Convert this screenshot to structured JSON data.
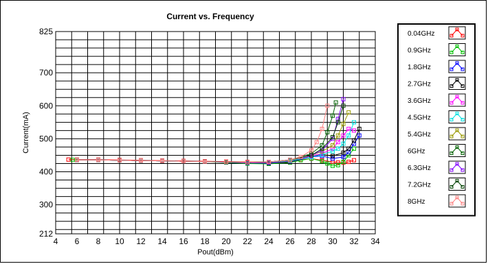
{
  "chart_data": {
    "type": "line",
    "title": "Current vs. Frequency",
    "xlabel": "Pout(dBm)",
    "ylabel": "Current(mA)",
    "xlim": [
      4,
      34
    ],
    "ylim": [
      212,
      825
    ],
    "x_ticks": [
      4,
      6,
      8,
      10,
      12,
      14,
      16,
      18,
      20,
      22,
      24,
      26,
      28,
      30,
      32,
      34
    ],
    "y_ticks": [
      212,
      300,
      400,
      500,
      600,
      700,
      825
    ],
    "grid": true,
    "legend_position": "right",
    "series": [
      {
        "name": "0.04GHz",
        "color": "#ff0000",
        "x": [
          5.2,
          6,
          8,
          10,
          12,
          14,
          16,
          18,
          20,
          22,
          24,
          26,
          27,
          28,
          29,
          30,
          30.5,
          31,
          31.5,
          32
        ],
        "y": [
          437,
          437,
          437,
          436,
          435,
          434,
          433,
          432,
          431,
          430,
          430,
          432,
          436,
          440,
          435,
          430,
          428,
          428,
          430,
          435
        ]
      },
      {
        "name": "0.9GHz",
        "color": "#00c000",
        "x": [
          5.6,
          6,
          8,
          10,
          12,
          14,
          16,
          18,
          20,
          22,
          24,
          26,
          27,
          28,
          29,
          29.5,
          30,
          30.5,
          31,
          31.5,
          32
        ],
        "y": [
          436,
          436,
          436,
          435,
          434,
          433,
          432,
          431,
          428,
          425,
          424,
          428,
          435,
          440,
          432,
          425,
          418,
          420,
          430,
          450,
          470
        ]
      },
      {
        "name": "1.8GHz",
        "color": "#0000ff",
        "x": [
          6,
          8,
          10,
          12,
          14,
          16,
          18,
          20,
          22,
          24,
          26,
          28,
          29,
          30,
          31,
          31.5,
          32,
          32.5
        ],
        "y": [
          436,
          436,
          435,
          434,
          433,
          432,
          431,
          429,
          427,
          426,
          430,
          445,
          448,
          440,
          445,
          460,
          485,
          510
        ]
      },
      {
        "name": "2.7GHz",
        "color": "#000000",
        "x": [
          6,
          8,
          10,
          12,
          14,
          16,
          18,
          20,
          22,
          24,
          26,
          28,
          29,
          30,
          31,
          31.5,
          32,
          32.5
        ],
        "y": [
          436,
          436,
          435,
          434,
          433,
          432,
          431,
          430,
          428,
          427,
          430,
          448,
          452,
          448,
          458,
          470,
          495,
          530
        ]
      },
      {
        "name": "3.6GHz",
        "color": "#ff00ff",
        "x": [
          6,
          8,
          10,
          12,
          14,
          16,
          18,
          20,
          22,
          24,
          26,
          28,
          29,
          30,
          30.5,
          31,
          31.5,
          32
        ],
        "y": [
          436,
          436,
          435,
          434,
          433,
          432,
          431,
          430,
          428,
          428,
          432,
          448,
          455,
          470,
          490,
          510,
          530,
          525
        ]
      },
      {
        "name": "4.5GHz",
        "color": "#00e0e0",
        "x": [
          6,
          8,
          10,
          12,
          14,
          16,
          18,
          20,
          22,
          24,
          26,
          28,
          29,
          30,
          30.5,
          31,
          31.5,
          32
        ],
        "y": [
          436,
          436,
          435,
          434,
          433,
          432,
          431,
          430,
          429,
          429,
          433,
          445,
          452,
          462,
          470,
          485,
          510,
          550
        ]
      },
      {
        "name": "5.4GHz",
        "color": "#999900",
        "x": [
          6,
          8,
          10,
          12,
          14,
          16,
          18,
          20,
          22,
          24,
          26,
          28,
          29,
          30,
          30.5,
          31,
          31.5
        ],
        "y": [
          436,
          436,
          435,
          434,
          433,
          432,
          431,
          430,
          429,
          430,
          435,
          450,
          462,
          480,
          510,
          545,
          580
        ]
      },
      {
        "name": "6GHz",
        "color": "#006000",
        "x": [
          6,
          8,
          10,
          12,
          14,
          16,
          18,
          20,
          22,
          24,
          26,
          28,
          29,
          29.5,
          30,
          30.3
        ],
        "y": [
          436,
          436,
          435,
          434,
          433,
          432,
          431,
          430,
          429,
          430,
          436,
          455,
          480,
          520,
          570,
          610
        ]
      },
      {
        "name": "6.3GHz",
        "color": "#8000ff",
        "x": [
          6,
          8,
          10,
          12,
          14,
          16,
          18,
          20,
          22,
          24,
          26,
          28,
          29,
          30,
          30.5,
          31
        ],
        "y": [
          436,
          436,
          435,
          434,
          433,
          432,
          431,
          430,
          429,
          430,
          436,
          450,
          465,
          500,
          560,
          620
        ]
      },
      {
        "name": "7.2GHz",
        "color": "#004000",
        "x": [
          6,
          8,
          10,
          12,
          14,
          16,
          18,
          20,
          22,
          24,
          26,
          28,
          29,
          30,
          30.5,
          31
        ],
        "y": [
          436,
          436,
          435,
          434,
          433,
          432,
          431,
          430,
          429,
          430,
          436,
          450,
          470,
          505,
          550,
          600
        ]
      },
      {
        "name": "8GHz",
        "color": "#ff8080",
        "x": [
          6,
          8,
          10,
          12,
          14,
          16,
          18,
          20,
          22,
          24,
          26,
          27,
          28,
          28.5,
          29,
          29.5
        ],
        "y": [
          436,
          436,
          435,
          434,
          433,
          432,
          431,
          430,
          429,
          430,
          436,
          445,
          465,
          490,
          530,
          600
        ]
      }
    ]
  }
}
